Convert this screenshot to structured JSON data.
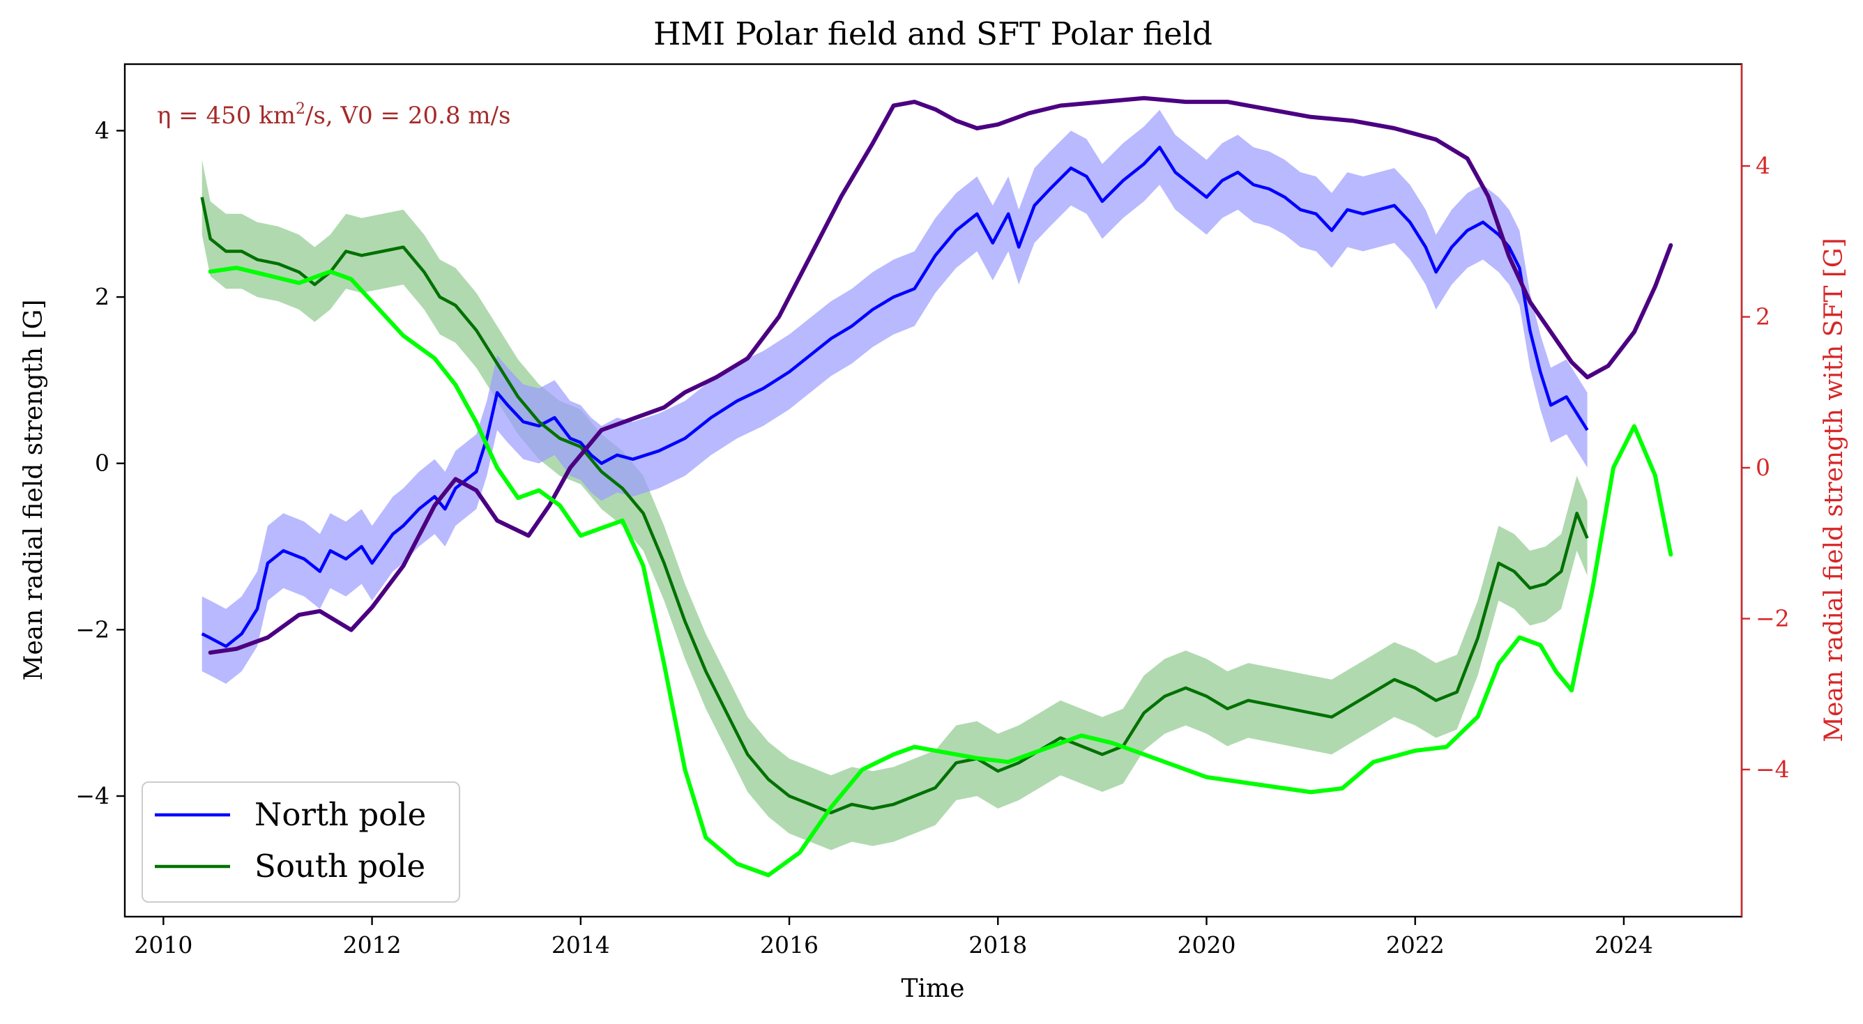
{
  "chart_data": {
    "type": "line",
    "title": "HMI Polar field and SFT Polar field",
    "xlabel": "Time",
    "ylabel": "Mean radial field strength [G]",
    "ylabel_right": "Mean radial field strength with SFT [G]",
    "annotation": {
      "prefix": "η = 450 km",
      "sup": "2",
      "suffix": "/s, V0 = 20.8 m/s"
    },
    "xlim": [
      2009.63,
      2025.13
    ],
    "ylim": [
      -5.45,
      4.8
    ],
    "ylim_right": [
      -5.95,
      5.35
    ],
    "x_ticks": [
      "2010",
      "2012",
      "2014",
      "2016",
      "2018",
      "2020",
      "2022",
      "2024"
    ],
    "y_ticks": [
      "−4",
      "−2",
      "0",
      "2",
      "4"
    ],
    "y_ticks_right": [
      "−4",
      "−2",
      "0",
      "2",
      "4"
    ],
    "grid": false,
    "legend_position": "lower left",
    "colors": {
      "north": "#0000ff",
      "north_band": "#9b9bff",
      "south": "#007100",
      "south_band": "#8fc98f",
      "sft_north": "#4b0082",
      "sft_south": "#00ff00",
      "right_axis": "#d62728",
      "annotation": "#a52a2a"
    },
    "series": [
      {
        "name": "North pole",
        "axis": "left",
        "band": 0.45,
        "x": [
          2010.37,
          2010.45,
          2010.6,
          2010.75,
          2010.9,
          2011.0,
          2011.15,
          2011.35,
          2011.5,
          2011.6,
          2011.75,
          2011.9,
          2012.0,
          2012.2,
          2012.3,
          2012.45,
          2012.6,
          2012.7,
          2012.8,
          2012.9,
          2013.0,
          2013.1,
          2013.2,
          2013.3,
          2013.45,
          2013.6,
          2013.75,
          2013.9,
          2014.0,
          2014.1,
          2014.2,
          2014.35,
          2014.5,
          2014.75,
          2015.0,
          2015.25,
          2015.5,
          2015.75,
          2016.0,
          2016.2,
          2016.4,
          2016.6,
          2016.8,
          2017.0,
          2017.2,
          2017.4,
          2017.6,
          2017.8,
          2017.95,
          2018.1,
          2018.2,
          2018.35,
          2018.5,
          2018.7,
          2018.85,
          2019.0,
          2019.2,
          2019.4,
          2019.55,
          2019.7,
          2019.85,
          2020.0,
          2020.15,
          2020.3,
          2020.45,
          2020.6,
          2020.75,
          2020.9,
          2021.05,
          2021.2,
          2021.35,
          2021.5,
          2021.65,
          2021.8,
          2021.95,
          2022.1,
          2022.2,
          2022.35,
          2022.5,
          2022.65,
          2022.8,
          2022.9,
          2023.0,
          2023.1,
          2023.2,
          2023.3,
          2023.45,
          2023.55,
          2023.65
        ],
        "values": [
          -2.05,
          -2.1,
          -2.2,
          -2.05,
          -1.75,
          -1.2,
          -1.05,
          -1.15,
          -1.3,
          -1.05,
          -1.15,
          -1.0,
          -1.2,
          -0.85,
          -0.75,
          -0.55,
          -0.4,
          -0.55,
          -0.3,
          -0.2,
          -0.1,
          0.3,
          0.85,
          0.7,
          0.5,
          0.45,
          0.55,
          0.3,
          0.25,
          0.1,
          0.0,
          0.1,
          0.05,
          0.15,
          0.3,
          0.55,
          0.75,
          0.9,
          1.1,
          1.3,
          1.5,
          1.65,
          1.85,
          2.0,
          2.1,
          2.5,
          2.8,
          3.0,
          2.65,
          3.0,
          2.6,
          3.1,
          3.3,
          3.55,
          3.45,
          3.15,
          3.4,
          3.6,
          3.8,
          3.5,
          3.35,
          3.2,
          3.4,
          3.5,
          3.35,
          3.3,
          3.2,
          3.05,
          3.0,
          2.8,
          3.05,
          3.0,
          3.05,
          3.1,
          2.9,
          2.6,
          2.3,
          2.6,
          2.8,
          2.9,
          2.75,
          2.6,
          2.35,
          1.6,
          1.1,
          0.7,
          0.8,
          0.6,
          0.4
        ]
      },
      {
        "name": "South pole",
        "axis": "left",
        "band": 0.45,
        "x": [
          2010.37,
          2010.45,
          2010.6,
          2010.75,
          2010.9,
          2011.1,
          2011.3,
          2011.45,
          2011.6,
          2011.75,
          2011.9,
          2012.1,
          2012.3,
          2012.5,
          2012.65,
          2012.8,
          2013.0,
          2013.2,
          2013.4,
          2013.6,
          2013.8,
          2014.0,
          2014.2,
          2014.4,
          2014.6,
          2014.8,
          2015.0,
          2015.2,
          2015.4,
          2015.6,
          2015.8,
          2016.0,
          2016.2,
          2016.4,
          2016.6,
          2016.8,
          2017.0,
          2017.2,
          2017.4,
          2017.6,
          2017.8,
          2018.0,
          2018.2,
          2018.4,
          2018.6,
          2018.8,
          2019.0,
          2019.2,
          2019.4,
          2019.6,
          2019.8,
          2020.0,
          2020.2,
          2020.4,
          2020.6,
          2020.8,
          2021.0,
          2021.2,
          2021.4,
          2021.6,
          2021.8,
          2022.0,
          2022.2,
          2022.4,
          2022.6,
          2022.8,
          2022.95,
          2023.1,
          2023.25,
          2023.4,
          2023.55,
          2023.65
        ],
        "values": [
          3.2,
          2.7,
          2.55,
          2.55,
          2.45,
          2.4,
          2.3,
          2.15,
          2.3,
          2.55,
          2.5,
          2.55,
          2.6,
          2.3,
          2.0,
          1.9,
          1.6,
          1.2,
          0.8,
          0.5,
          0.3,
          0.2,
          -0.1,
          -0.3,
          -0.6,
          -1.2,
          -1.9,
          -2.5,
          -3.0,
          -3.5,
          -3.8,
          -4.0,
          -4.1,
          -4.2,
          -4.1,
          -4.15,
          -4.1,
          -4.0,
          -3.9,
          -3.6,
          -3.55,
          -3.7,
          -3.6,
          -3.45,
          -3.3,
          -3.4,
          -3.5,
          -3.4,
          -3.0,
          -2.8,
          -2.7,
          -2.8,
          -2.95,
          -2.85,
          -2.9,
          -2.95,
          -3.0,
          -3.05,
          -2.9,
          -2.75,
          -2.6,
          -2.7,
          -2.85,
          -2.75,
          -2.1,
          -1.2,
          -1.3,
          -1.5,
          -1.45,
          -1.3,
          -0.6,
          -0.9
        ]
      },
      {
        "axis": "right",
        "x": [
          2010.45,
          2010.7,
          2011.0,
          2011.3,
          2011.5,
          2011.8,
          2012.0,
          2012.3,
          2012.6,
          2012.8,
          2013.0,
          2013.2,
          2013.5,
          2013.7,
          2013.9,
          2014.2,
          2014.5,
          2014.8,
          2015.0,
          2015.3,
          2015.6,
          2015.9,
          2016.2,
          2016.5,
          2016.8,
          2017.0,
          2017.2,
          2017.4,
          2017.6,
          2017.8,
          2018.0,
          2018.3,
          2018.6,
          2019.0,
          2019.4,
          2019.8,
          2020.2,
          2020.6,
          2021.0,
          2021.4,
          2021.8,
          2022.2,
          2022.5,
          2022.7,
          2022.9,
          2023.1,
          2023.3,
          2023.5,
          2023.65,
          2023.85,
          2024.1,
          2024.3,
          2024.45
        ],
        "values": [
          -2.45,
          -2.4,
          -2.25,
          -1.95,
          -1.9,
          -2.15,
          -1.85,
          -1.3,
          -0.5,
          -0.15,
          -0.3,
          -0.7,
          -0.9,
          -0.5,
          0.0,
          0.5,
          0.65,
          0.8,
          1.0,
          1.2,
          1.45,
          2.0,
          2.8,
          3.6,
          4.3,
          4.8,
          4.85,
          4.75,
          4.6,
          4.5,
          4.55,
          4.7,
          4.8,
          4.85,
          4.9,
          4.85,
          4.85,
          4.75,
          4.65,
          4.6,
          4.5,
          4.35,
          4.1,
          3.6,
          2.8,
          2.2,
          1.8,
          1.4,
          1.2,
          1.35,
          1.8,
          2.4,
          2.95
        ]
      },
      {
        "axis": "right",
        "x": [
          2010.45,
          2010.7,
          2011.0,
          2011.3,
          2011.6,
          2011.8,
          2012.0,
          2012.3,
          2012.6,
          2012.8,
          2013.0,
          2013.2,
          2013.4,
          2013.6,
          2013.8,
          2014.0,
          2014.2,
          2014.4,
          2014.6,
          2014.8,
          2015.0,
          2015.2,
          2015.5,
          2015.8,
          2016.1,
          2016.4,
          2016.7,
          2017.0,
          2017.2,
          2017.4,
          2017.8,
          2018.1,
          2018.4,
          2018.8,
          2019.1,
          2019.5,
          2020.0,
          2020.5,
          2021.0,
          2021.3,
          2021.6,
          2022.0,
          2022.3,
          2022.6,
          2022.8,
          2023.0,
          2023.2,
          2023.35,
          2023.5,
          2023.7,
          2023.9,
          2024.1,
          2024.3,
          2024.45
        ],
        "values": [
          2.6,
          2.65,
          2.55,
          2.45,
          2.6,
          2.5,
          2.2,
          1.75,
          1.45,
          1.1,
          0.6,
          0.0,
          -0.4,
          -0.3,
          -0.5,
          -0.9,
          -0.8,
          -0.7,
          -1.3,
          -2.6,
          -4.0,
          -4.9,
          -5.25,
          -5.4,
          -5.1,
          -4.5,
          -4.0,
          -3.8,
          -3.7,
          -3.75,
          -3.85,
          -3.9,
          -3.75,
          -3.55,
          -3.65,
          -3.85,
          -4.1,
          -4.2,
          -4.3,
          -4.25,
          -3.9,
          -3.75,
          -3.7,
          -3.3,
          -2.6,
          -2.25,
          -2.35,
          -2.7,
          -2.95,
          -1.6,
          0.0,
          0.55,
          -0.1,
          -1.15
        ]
      }
    ]
  }
}
